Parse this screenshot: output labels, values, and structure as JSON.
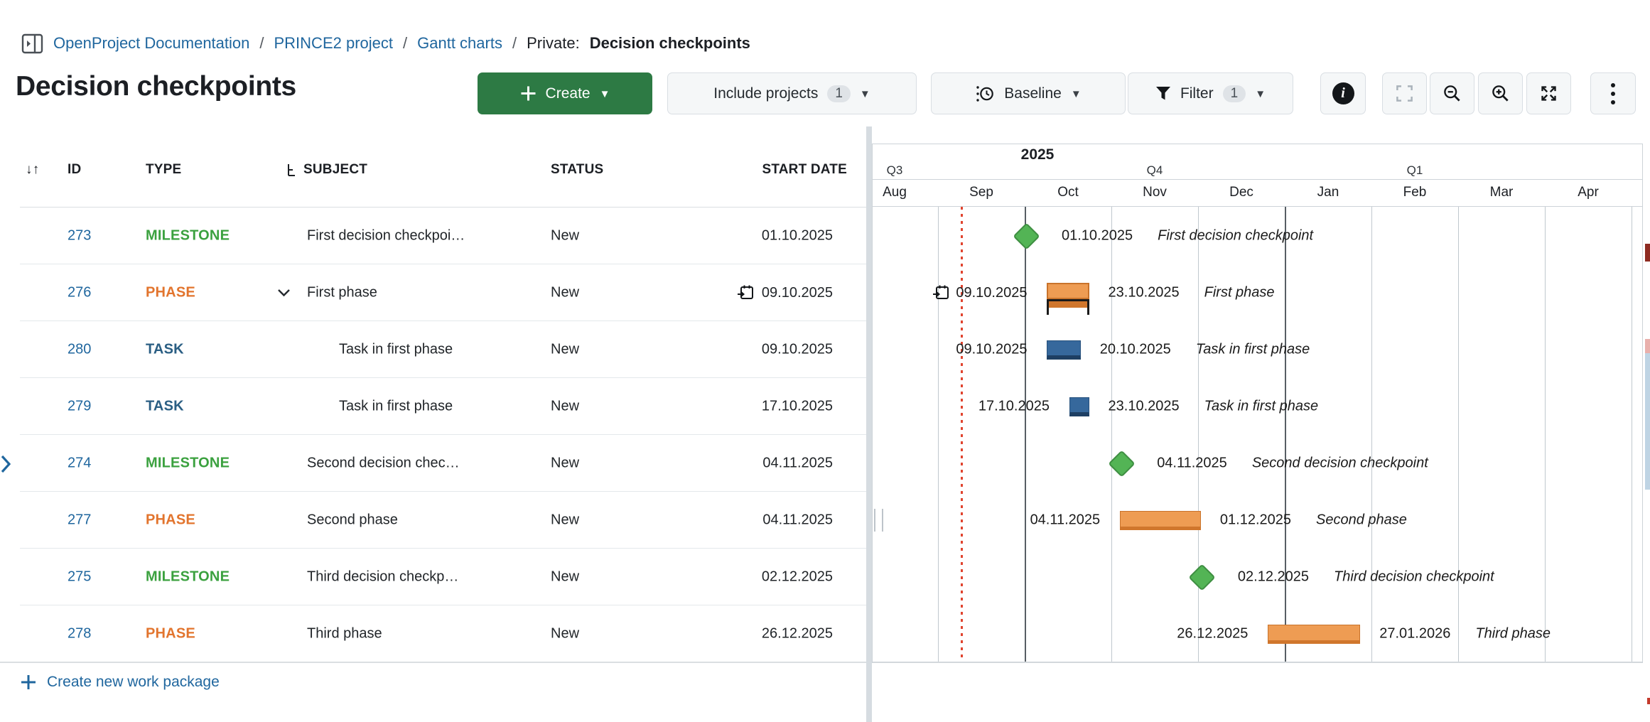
{
  "breadcrumb": {
    "separator": "/",
    "items": [
      "OpenProject Documentation",
      "PRINCE2 project",
      "Gantt charts"
    ],
    "context": "Private:",
    "current": "Decision checkpoints"
  },
  "header": {
    "title": "Decision checkpoints"
  },
  "toolbar": {
    "create_label": "Create",
    "include_projects_label": "Include projects",
    "include_projects_badge": "1",
    "baseline_label": "Baseline",
    "filter_label": "Filter",
    "filter_badge": "1"
  },
  "table": {
    "headers": {
      "id": "ID",
      "type": "TYPE",
      "subject": "SUBJECT",
      "status": "STATUS",
      "start_date": "START DATE"
    },
    "rows": [
      {
        "id": "273",
        "type": "MILESTONE",
        "subject": "First decision checkpoi…",
        "indent": 0,
        "chevron": false,
        "status": "New",
        "start_date": "01.10.2025",
        "date_icon": false
      },
      {
        "id": "276",
        "type": "PHASE",
        "subject": "First phase",
        "indent": 0,
        "chevron": true,
        "status": "New",
        "start_date": "09.10.2025",
        "date_icon": true
      },
      {
        "id": "280",
        "type": "TASK",
        "subject": "Task in first phase",
        "indent": 1,
        "chevron": false,
        "status": "New",
        "start_date": "09.10.2025",
        "date_icon": false
      },
      {
        "id": "279",
        "type": "TASK",
        "subject": "Task in first phase",
        "indent": 1,
        "chevron": false,
        "status": "New",
        "start_date": "17.10.2025",
        "date_icon": false
      },
      {
        "id": "274",
        "type": "MILESTONE",
        "subject": "Second decision chec…",
        "indent": 0,
        "chevron": false,
        "status": "New",
        "start_date": "04.11.2025",
        "date_icon": false
      },
      {
        "id": "277",
        "type": "PHASE",
        "subject": "Second phase",
        "indent": 0,
        "chevron": false,
        "status": "New",
        "start_date": "04.11.2025",
        "date_icon": false
      },
      {
        "id": "275",
        "type": "MILESTONE",
        "subject": "Third decision checkp…",
        "indent": 0,
        "chevron": false,
        "status": "New",
        "start_date": "02.12.2025",
        "date_icon": false
      },
      {
        "id": "278",
        "type": "PHASE",
        "subject": "Third phase",
        "indent": 0,
        "chevron": false,
        "status": "New",
        "start_date": "26.12.2025",
        "date_icon": false
      }
    ],
    "create_label": "Create new work package"
  },
  "gantt": {
    "year": "2025",
    "quarters": [
      "Q3",
      "Q4",
      "Q1"
    ],
    "months": [
      "Aug",
      "Sep",
      "Oct",
      "Nov",
      "Dec",
      "Jan",
      "Feb",
      "Mar",
      "Apr"
    ],
    "rows": [
      {
        "kind": "milestone",
        "date": "01.10.2025",
        "label": "First decision checkpoint"
      },
      {
        "kind": "phase",
        "start": "09.10.2025",
        "end": "23.10.2025",
        "label": "First phase",
        "baseline_changed": true,
        "left_icon": "calendar-arrow-icon"
      },
      {
        "kind": "task",
        "start": "09.10.2025",
        "end": "20.10.2025",
        "label": "Task in first phase"
      },
      {
        "kind": "task",
        "start": "17.10.2025",
        "end": "23.10.2025",
        "label": "Task in first phase"
      },
      {
        "kind": "milestone",
        "date": "04.11.2025",
        "label": "Second decision checkpoint"
      },
      {
        "kind": "phase",
        "start": "04.11.2025",
        "end": "01.12.2025",
        "label": "Second phase",
        "baseline_changed": false
      },
      {
        "kind": "milestone",
        "date": "02.12.2025",
        "label": "Third decision checkpoint"
      },
      {
        "kind": "phase",
        "start": "26.12.2025",
        "end": "27.01.2026",
        "label": "Third phase",
        "baseline_changed": false
      }
    ]
  },
  "colors": {
    "link": "#1F669E",
    "create_button": "#2D7A44",
    "type": {
      "MILESTONE": "#3BA13F",
      "PHASE": "#E2742D",
      "TASK": "#2A5E83"
    },
    "gantt": {
      "milestone_fill": "#53B455",
      "milestone_border": "#3E8E41",
      "phase_fill": "#EE9C53",
      "phase_border": "#C9732B",
      "phase_baseline_strip": "#D0762C",
      "task_fill": "#36689C",
      "task_border": "#27517D",
      "task_bottom": "#1E3F63",
      "today_line": "#E0442F"
    }
  }
}
